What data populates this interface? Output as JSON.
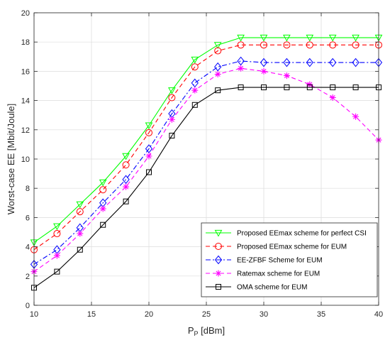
{
  "chart_data": {
    "type": "line",
    "xlabel": "P",
    "xlabel_sub": "P",
    "xlabel_unit": " [dBm]",
    "ylabel": "Worst-case EE [Mbit/Joule]",
    "xlim": [
      10,
      40
    ],
    "ylim": [
      0,
      20
    ],
    "xticks": [
      10,
      15,
      20,
      25,
      30,
      35,
      40
    ],
    "yticks": [
      0,
      2,
      4,
      6,
      8,
      10,
      12,
      14,
      16,
      18,
      20
    ],
    "grid": true,
    "legend_position": "bottom-right",
    "x": [
      10,
      12,
      14,
      16,
      18,
      20,
      22,
      24,
      26,
      28,
      30,
      32,
      34,
      36,
      38,
      40
    ],
    "series": [
      {
        "name": "Proposed EEmax scheme for perfect CSI",
        "color": "#00ff00",
        "dash": "solid",
        "marker": "triangle-down",
        "values": [
          4.3,
          5.4,
          6.9,
          8.4,
          10.2,
          12.3,
          14.7,
          16.8,
          17.8,
          18.3,
          18.3,
          18.3,
          18.3,
          18.3,
          18.3,
          18.3
        ]
      },
      {
        "name": "Proposed EEmax scheme for EUM",
        "color": "#ff0000",
        "dash": "dashed",
        "marker": "circle",
        "values": [
          3.8,
          4.9,
          6.4,
          7.9,
          9.6,
          11.8,
          14.2,
          16.3,
          17.4,
          17.8,
          17.8,
          17.8,
          17.8,
          17.8,
          17.8,
          17.8
        ]
      },
      {
        "name": "EE-ZFBF Scheme for EUM",
        "color": "#0000ff",
        "dash": "dashdot",
        "marker": "diamond",
        "values": [
          2.8,
          3.8,
          5.3,
          7.0,
          8.6,
          10.7,
          13.1,
          15.2,
          16.3,
          16.7,
          16.6,
          16.6,
          16.6,
          16.6,
          16.6,
          16.6
        ]
      },
      {
        "name": "Ratemax scheme for EUM",
        "color": "#ff00ff",
        "dash": "dashed",
        "marker": "asterisk",
        "values": [
          2.3,
          3.4,
          4.9,
          6.6,
          8.1,
          10.2,
          12.7,
          14.7,
          15.8,
          16.2,
          16.0,
          15.7,
          15.1,
          14.2,
          12.9,
          11.3
        ]
      },
      {
        "name": "OMA scheme for EUM",
        "color": "#000000",
        "dash": "solid",
        "marker": "square",
        "values": [
          1.2,
          2.3,
          3.8,
          5.5,
          7.1,
          9.1,
          11.6,
          13.7,
          14.7,
          14.9,
          14.9,
          14.9,
          14.9,
          14.9,
          14.9,
          14.9
        ]
      }
    ]
  }
}
